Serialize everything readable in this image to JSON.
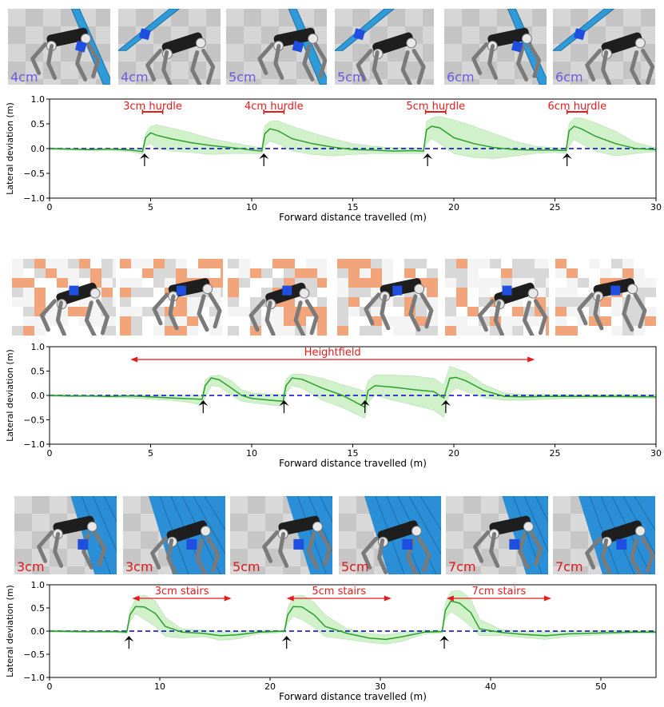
{
  "colors": {
    "mean_line": "#2ca02c",
    "band_fill": "#98df8a",
    "baseline": "#0000cc",
    "annotation": "#e8191b",
    "arrow": "#000000",
    "caption_blue": "#6a5ae0",
    "caption_red": "#e01818",
    "stair_blue": "#2a8fd6",
    "hurdle_blue": "#2e9bd8",
    "box_blue": "#1f4fe0",
    "terrain_orange": "#f2a57a",
    "floor_grey": "#c9c9c9"
  },
  "panels": [
    {
      "thumbnails": [
        {
          "caption": "4cm",
          "caption_color": "blue",
          "scene": "hurdle",
          "icon": "robot-dog-hurdle-icon"
        },
        {
          "caption": "4cm",
          "caption_color": "blue",
          "scene": "hurdle",
          "icon": "robot-dog-hurdle-icon"
        },
        {
          "caption": "5cm",
          "caption_color": "blue",
          "scene": "hurdle",
          "icon": "robot-dog-hurdle-icon"
        },
        {
          "caption": "5cm",
          "caption_color": "blue",
          "scene": "hurdle",
          "icon": "robot-dog-hurdle-icon"
        },
        {
          "caption": "6cm",
          "caption_color": "blue",
          "scene": "hurdle",
          "icon": "robot-dog-hurdle-icon"
        },
        {
          "caption": "6cm",
          "caption_color": "blue",
          "scene": "hurdle",
          "icon": "robot-dog-hurdle-icon"
        }
      ]
    },
    {
      "thumbnails": [
        {
          "caption": "",
          "scene": "heightfield",
          "icon": "robot-dog-heightfield-icon"
        },
        {
          "caption": "",
          "scene": "heightfield",
          "icon": "robot-dog-heightfield-icon"
        },
        {
          "caption": "",
          "scene": "heightfield",
          "icon": "robot-dog-heightfield-icon"
        },
        {
          "caption": "",
          "scene": "heightfield",
          "icon": "robot-dog-heightfield-icon"
        },
        {
          "caption": "",
          "scene": "heightfield",
          "icon": "robot-dog-heightfield-icon"
        },
        {
          "caption": "",
          "scene": "heightfield",
          "icon": "robot-dog-heightfield-icon"
        }
      ]
    },
    {
      "thumbnails": [
        {
          "caption": "3cm",
          "caption_color": "red",
          "scene": "stairs",
          "icon": "robot-dog-stairs-icon"
        },
        {
          "caption": "3cm",
          "caption_color": "red",
          "scene": "stairs",
          "icon": "robot-dog-stairs-icon"
        },
        {
          "caption": "5cm",
          "caption_color": "red",
          "scene": "stairs",
          "icon": "robot-dog-stairs-icon"
        },
        {
          "caption": "5cm",
          "caption_color": "red",
          "scene": "stairs",
          "icon": "robot-dog-stairs-icon"
        },
        {
          "caption": "7cm",
          "caption_color": "red",
          "scene": "stairs",
          "icon": "robot-dog-stairs-icon"
        },
        {
          "caption": "7cm",
          "caption_color": "red",
          "scene": "stairs",
          "icon": "robot-dog-stairs-icon"
        }
      ]
    }
  ],
  "chart_data": [
    {
      "type": "line",
      "title": "",
      "xlabel": "Forward distance travelled (m)",
      "ylabel": "Lateral deviation (m)",
      "xlim": [
        0,
        30
      ],
      "ylim": [
        -1.0,
        1.0
      ],
      "xticks": [
        0,
        5,
        10,
        15,
        20,
        25,
        30
      ],
      "yticks": [
        -1.0,
        -0.5,
        0.0,
        0.5,
        1.0
      ],
      "xtick_labels": [
        "0",
        "5",
        "10",
        "15",
        "20",
        "25",
        "30"
      ],
      "ytick_labels": [
        "−1.0",
        "−0.5",
        "0.0",
        "0.5",
        "1.0"
      ],
      "grid": false,
      "reference_line": {
        "y": 0.0,
        "style": "dashed"
      },
      "push_arrows_x": [
        4.7,
        10.6,
        18.7,
        25.6
      ],
      "annotations": [
        {
          "text": "3cm hurdle",
          "x_start": 4.6,
          "x_end": 5.6
        },
        {
          "text": "4cm hurdle",
          "x_start": 10.6,
          "x_end": 11.6
        },
        {
          "text": "5cm hurdle",
          "x_start": 18.6,
          "x_end": 19.6
        },
        {
          "text": "6cm hurdle",
          "x_start": 25.6,
          "x_end": 26.6
        }
      ],
      "series": [
        {
          "x": [
            0,
            1,
            2,
            3,
            4,
            4.6,
            4.75,
            5.0,
            5.3,
            6,
            7,
            8,
            9,
            10,
            10.5,
            10.65,
            10.9,
            11.3,
            12,
            13,
            14,
            15,
            16,
            17,
            18,
            18.5,
            18.65,
            18.9,
            19.3,
            20,
            21,
            22,
            23,
            24,
            25,
            25.55,
            25.7,
            25.95,
            26.3,
            27,
            28,
            29,
            30
          ],
          "mean": [
            0.0,
            -0.01,
            -0.02,
            -0.01,
            -0.03,
            -0.06,
            0.22,
            0.32,
            0.27,
            0.2,
            0.12,
            0.06,
            0.02,
            -0.03,
            -0.05,
            0.3,
            0.4,
            0.36,
            0.2,
            0.1,
            0.03,
            -0.02,
            -0.03,
            -0.05,
            -0.04,
            -0.05,
            0.38,
            0.45,
            0.42,
            0.22,
            0.1,
            0.02,
            -0.02,
            -0.03,
            -0.03,
            -0.04,
            0.36,
            0.45,
            0.4,
            0.25,
            0.1,
            0.0,
            -0.02
          ],
          "upper": [
            0.02,
            0.0,
            0.0,
            0.0,
            0.0,
            0.0,
            0.3,
            0.45,
            0.48,
            0.42,
            0.32,
            0.2,
            0.12,
            0.05,
            0.02,
            0.45,
            0.55,
            0.56,
            0.45,
            0.32,
            0.2,
            0.1,
            0.05,
            0.02,
            0.02,
            0.0,
            0.55,
            0.62,
            0.65,
            0.58,
            0.45,
            0.3,
            0.15,
            0.05,
            0.02,
            0.0,
            0.5,
            0.62,
            0.62,
            0.52,
            0.35,
            0.12,
            0.02
          ],
          "lower": [
            -0.02,
            -0.03,
            -0.04,
            -0.04,
            -0.06,
            -0.12,
            0.05,
            0.1,
            0.0,
            -0.05,
            -0.08,
            -0.12,
            -0.1,
            -0.1,
            -0.1,
            0.05,
            0.15,
            0.1,
            -0.05,
            -0.12,
            -0.15,
            -0.12,
            -0.1,
            -0.1,
            -0.1,
            -0.1,
            0.1,
            0.2,
            0.1,
            -0.1,
            -0.18,
            -0.2,
            -0.15,
            -0.1,
            -0.08,
            -0.1,
            0.05,
            0.18,
            0.1,
            -0.05,
            -0.15,
            -0.1,
            -0.06
          ]
        }
      ]
    },
    {
      "type": "line",
      "title": "",
      "xlabel": "Forward distance travelled (m)",
      "ylabel": "Lateral deviation (m)",
      "xlim": [
        0,
        30
      ],
      "ylim": [
        -1.0,
        1.0
      ],
      "xticks": [
        0,
        5,
        10,
        15,
        20,
        25,
        30
      ],
      "yticks": [
        -1.0,
        -0.5,
        0.0,
        0.5,
        1.0
      ],
      "xtick_labels": [
        "0",
        "5",
        "10",
        "15",
        "20",
        "25",
        "30"
      ],
      "ytick_labels": [
        "−1.0",
        "−0.5",
        "0.0",
        "0.5",
        "1.0"
      ],
      "grid": false,
      "reference_line": {
        "y": 0.0,
        "style": "dashed"
      },
      "push_arrows_x": [
        7.6,
        11.6,
        15.6,
        19.6
      ],
      "annotations": [
        {
          "text": "Heightfield",
          "x_start": 4.0,
          "x_end": 24.0
        }
      ],
      "series": [
        {
          "x": [
            0,
            1,
            2,
            3,
            4,
            5,
            6,
            7,
            7.55,
            7.7,
            8.0,
            8.4,
            9,
            9.5,
            10,
            11,
            11.55,
            11.7,
            12.0,
            12.5,
            13.5,
            14.5,
            15.5,
            15.6,
            15.75,
            16.1,
            17,
            18,
            19,
            19.5,
            19.65,
            19.8,
            20.1,
            20.6,
            21.5,
            22.5,
            23.5,
            24.5,
            25.5,
            27,
            28,
            30
          ],
          "mean": [
            0.0,
            -0.01,
            -0.01,
            -0.02,
            -0.01,
            -0.03,
            -0.05,
            -0.07,
            -0.08,
            0.2,
            0.36,
            0.32,
            0.15,
            0.0,
            -0.06,
            -0.1,
            -0.12,
            0.2,
            0.36,
            0.33,
            0.15,
            0.0,
            -0.22,
            -0.24,
            0.1,
            0.2,
            0.17,
            0.12,
            0.08,
            -0.05,
            0.15,
            0.35,
            0.37,
            0.3,
            0.1,
            -0.02,
            -0.03,
            -0.02,
            -0.02,
            -0.02,
            -0.02,
            -0.03
          ],
          "upper": [
            0.02,
            0.01,
            0.0,
            0.0,
            0.01,
            0.0,
            0.0,
            0.0,
            0.0,
            0.32,
            0.4,
            0.42,
            0.3,
            0.12,
            0.05,
            0.03,
            0.02,
            0.33,
            0.44,
            0.44,
            0.35,
            0.22,
            0.1,
            0.05,
            0.3,
            0.42,
            0.42,
            0.4,
            0.35,
            0.22,
            0.4,
            0.6,
            0.55,
            0.48,
            0.22,
            0.05,
            0.02,
            0.02,
            0.02,
            0.01,
            0.02,
            0.01
          ],
          "lower": [
            -0.02,
            -0.03,
            -0.03,
            -0.04,
            -0.05,
            -0.08,
            -0.1,
            -0.15,
            -0.2,
            -0.05,
            0.2,
            0.18,
            0.0,
            -0.12,
            -0.15,
            -0.2,
            -0.22,
            0.05,
            0.2,
            0.15,
            -0.1,
            -0.25,
            -0.45,
            -0.46,
            -0.15,
            0.0,
            -0.1,
            -0.2,
            -0.3,
            -0.45,
            -0.15,
            0.05,
            0.15,
            0.08,
            -0.05,
            -0.1,
            -0.1,
            -0.08,
            -0.06,
            -0.05,
            -0.05,
            -0.06
          ]
        }
      ]
    },
    {
      "type": "line",
      "title": "",
      "xlabel": "Forward distance travelled (m)",
      "ylabel": "Lateral deviation (m)",
      "xlim": [
        0,
        55
      ],
      "ylim": [
        -1.0,
        1.0
      ],
      "xticks": [
        0,
        10,
        20,
        30,
        40,
        50
      ],
      "yticks": [
        -1.0,
        -0.5,
        0.0,
        0.5,
        1.0
      ],
      "xtick_labels": [
        "0",
        "10",
        "20",
        "30",
        "40",
        "50"
      ],
      "ytick_labels": [
        "−1.0",
        "−0.5",
        "0.0",
        "0.5",
        "1.0"
      ],
      "grid": false,
      "reference_line": {
        "y": 0.0,
        "style": "dashed"
      },
      "push_arrows_x": [
        7.2,
        21.5,
        35.8
      ],
      "annotations": [
        {
          "text": "3cm stairs",
          "x_start": 7.5,
          "x_end": 16.5
        },
        {
          "text": "5cm stairs",
          "x_start": 21.5,
          "x_end": 31.0
        },
        {
          "text": "7cm stairs",
          "x_start": 36.0,
          "x_end": 45.5
        }
      ],
      "series": [
        {
          "x": [
            0,
            3,
            6,
            7.0,
            7.3,
            7.8,
            8.6,
            9.6,
            10.5,
            12,
            14,
            15.5,
            17,
            19,
            21.3,
            21.6,
            22.1,
            22.9,
            24,
            25,
            27,
            29,
            30.5,
            32,
            34,
            35.6,
            35.9,
            36.4,
            37.2,
            38.2,
            39,
            41,
            43,
            45,
            47,
            50,
            53,
            55
          ],
          "mean": [
            0.0,
            -0.01,
            -0.01,
            -0.02,
            0.35,
            0.53,
            0.52,
            0.38,
            0.1,
            -0.02,
            -0.05,
            -0.1,
            -0.08,
            -0.02,
            0.0,
            0.35,
            0.53,
            0.52,
            0.35,
            0.1,
            -0.05,
            -0.15,
            -0.18,
            -0.12,
            -0.02,
            -0.01,
            0.45,
            0.65,
            0.6,
            0.4,
            0.05,
            -0.03,
            -0.07,
            -0.1,
            -0.06,
            -0.04,
            -0.02,
            -0.02
          ],
          "upper": [
            0.02,
            0.01,
            0.01,
            0.0,
            0.45,
            0.7,
            0.78,
            0.65,
            0.3,
            0.05,
            0.02,
            -0.02,
            0.0,
            0.02,
            0.02,
            0.5,
            0.74,
            0.78,
            0.62,
            0.35,
            0.05,
            -0.05,
            -0.08,
            -0.02,
            0.02,
            0.02,
            0.6,
            0.86,
            0.88,
            0.7,
            0.25,
            0.03,
            0.0,
            -0.02,
            0.0,
            0.01,
            0.01,
            0.01
          ],
          "lower": [
            -0.02,
            -0.03,
            -0.03,
            -0.05,
            0.2,
            0.38,
            0.25,
            0.1,
            -0.12,
            -0.15,
            -0.12,
            -0.2,
            -0.17,
            -0.06,
            -0.03,
            0.18,
            0.32,
            0.25,
            0.08,
            -0.12,
            -0.18,
            -0.25,
            -0.28,
            -0.22,
            -0.06,
            -0.04,
            0.28,
            0.42,
            0.3,
            0.1,
            -0.1,
            -0.1,
            -0.14,
            -0.18,
            -0.12,
            -0.08,
            -0.05,
            -0.05
          ]
        }
      ]
    }
  ]
}
